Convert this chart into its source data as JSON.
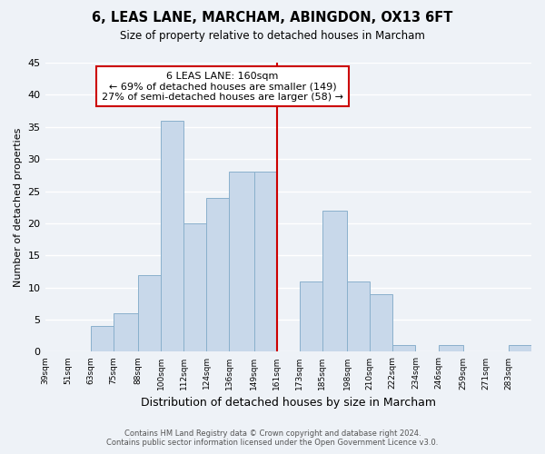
{
  "title": "6, LEAS LANE, MARCHAM, ABINGDON, OX13 6FT",
  "subtitle": "Size of property relative to detached houses in Marcham",
  "xlabel": "Distribution of detached houses by size in Marcham",
  "ylabel": "Number of detached properties",
  "bin_edges": [
    39,
    51,
    63,
    75,
    88,
    100,
    112,
    124,
    136,
    149,
    161,
    173,
    185,
    198,
    210,
    222,
    234,
    246,
    259,
    271,
    283,
    295
  ],
  "bin_labels": [
    "39sqm",
    "51sqm",
    "63sqm",
    "75sqm",
    "88sqm",
    "100sqm",
    "112sqm",
    "124sqm",
    "136sqm",
    "149sqm",
    "161sqm",
    "173sqm",
    "185sqm",
    "198sqm",
    "210sqm",
    "222sqm",
    "234sqm",
    "246sqm",
    "259sqm",
    "271sqm",
    "283sqm"
  ],
  "counts": [
    0,
    0,
    4,
    6,
    12,
    36,
    20,
    24,
    28,
    28,
    0,
    11,
    22,
    11,
    9,
    1,
    0,
    1,
    0,
    0,
    1
  ],
  "bar_color": "#c8d8ea",
  "bar_edge_color": "#8ab0cc",
  "vline_x": 161,
  "vline_color": "#cc0000",
  "annotation_text": "6 LEAS LANE: 160sqm\n← 69% of detached houses are smaller (149)\n27% of semi-detached houses are larger (58) →",
  "annotation_box_color": "#ffffff",
  "annotation_box_edge": "#cc0000",
  "ylim": [
    0,
    45
  ],
  "yticks": [
    0,
    5,
    10,
    15,
    20,
    25,
    30,
    35,
    40,
    45
  ],
  "footer_line1": "Contains HM Land Registry data © Crown copyright and database right 2024.",
  "footer_line2": "Contains public sector information licensed under the Open Government Licence v3.0.",
  "bg_color": "#eef2f7",
  "plot_bg_color": "#eef2f7",
  "grid_color": "#ffffff"
}
